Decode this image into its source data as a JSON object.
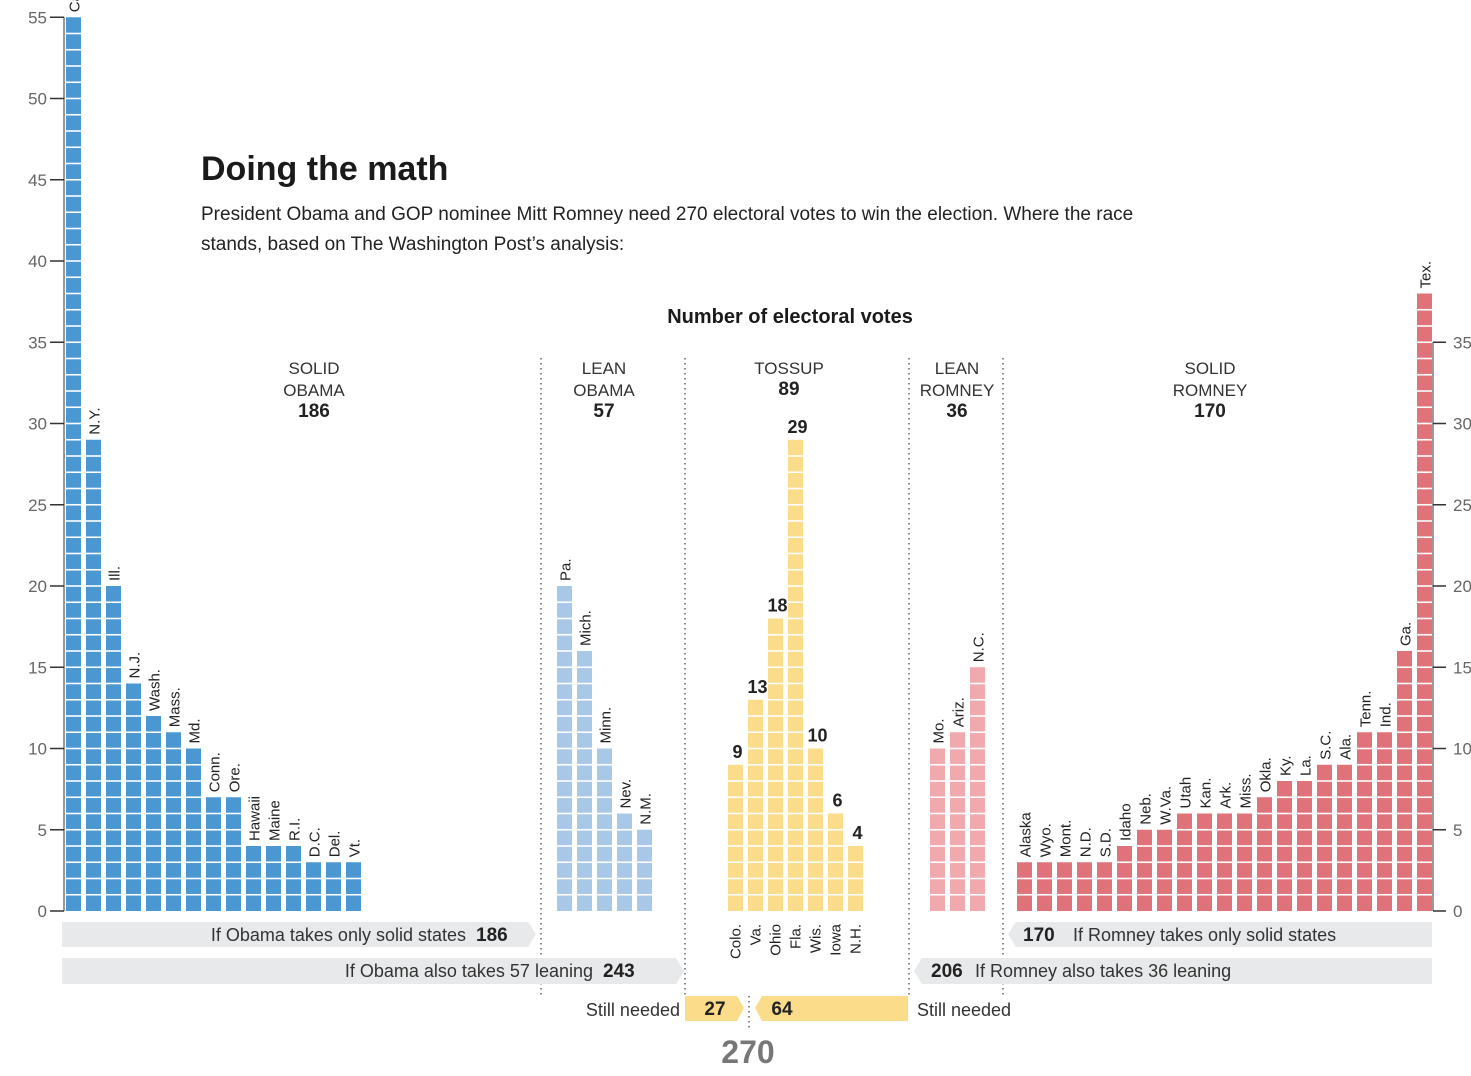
{
  "chart_data": {
    "type": "bar",
    "title": "Doing the math",
    "subtitle": "President Obama and GOP nominee Mitt Romney need 270 electoral votes to win the election. Where the race stands, based on The Washington Post’s analysis:",
    "ylabel": "Number of electoral votes",
    "ylim": [
      0,
      55
    ],
    "yticks_left": [
      0,
      5,
      10,
      15,
      20,
      25,
      30,
      35,
      40,
      45,
      50,
      55
    ],
    "yticks_right": [
      0,
      5,
      10,
      15,
      20,
      25,
      30,
      35
    ],
    "grid": false,
    "groups": [
      {
        "name": "SOLID OBAMA",
        "label_lines": [
          "SOLID",
          "OBAMA"
        ],
        "total": "186",
        "color": "#4a97d2",
        "states": [
          {
            "name": "Calif.",
            "votes": 55
          },
          {
            "name": "N.Y.",
            "votes": 29
          },
          {
            "name": "Ill.",
            "votes": 20
          },
          {
            "name": "N.J.",
            "votes": 14
          },
          {
            "name": "Wash.",
            "votes": 12
          },
          {
            "name": "Mass.",
            "votes": 11
          },
          {
            "name": "Md.",
            "votes": 10
          },
          {
            "name": "Conn.",
            "votes": 7
          },
          {
            "name": "Ore.",
            "votes": 7
          },
          {
            "name": "Hawaii",
            "votes": 4
          },
          {
            "name": "Maine",
            "votes": 4
          },
          {
            "name": "R.I.",
            "votes": 4
          },
          {
            "name": "D.C.",
            "votes": 3
          },
          {
            "name": "Del.",
            "votes": 3
          },
          {
            "name": "Vt.",
            "votes": 3
          }
        ]
      },
      {
        "name": "LEAN OBAMA",
        "label_lines": [
          "LEAN",
          "OBAMA"
        ],
        "total": "57",
        "color": "#a8c8e8",
        "states": [
          {
            "name": "Pa.",
            "votes": 20
          },
          {
            "name": "Mich.",
            "votes": 16
          },
          {
            "name": "Minn.",
            "votes": 10
          },
          {
            "name": "Nev.",
            "votes": 6
          },
          {
            "name": "N.M.",
            "votes": 5
          }
        ]
      },
      {
        "name": "TOSSUP",
        "label_lines": [
          "TOSSUP"
        ],
        "total": "89",
        "color": "#fadc8a",
        "states": [
          {
            "name": "Colo.",
            "votes": 9
          },
          {
            "name": "Va.",
            "votes": 13
          },
          {
            "name": "Ohio",
            "votes": 18
          },
          {
            "name": "Fla.",
            "votes": 29
          },
          {
            "name": "Wis.",
            "votes": 10
          },
          {
            "name": "Iowa",
            "votes": 6
          },
          {
            "name": "N.H.",
            "votes": 4
          }
        ]
      },
      {
        "name": "LEAN ROMNEY",
        "label_lines": [
          "LEAN",
          "ROMNEY"
        ],
        "total": "36",
        "color": "#f0a9ac",
        "states": [
          {
            "name": "Mo.",
            "votes": 10
          },
          {
            "name": "Ariz.",
            "votes": 11
          },
          {
            "name": "N.C.",
            "votes": 15
          }
        ]
      },
      {
        "name": "SOLID ROMNEY",
        "label_lines": [
          "SOLID",
          "ROMNEY"
        ],
        "total": "170",
        "color": "#e0737a",
        "states": [
          {
            "name": "Alaska",
            "votes": 3
          },
          {
            "name": "Wyo.",
            "votes": 3
          },
          {
            "name": "Mont.",
            "votes": 3
          },
          {
            "name": "N.D.",
            "votes": 3
          },
          {
            "name": "S.D.",
            "votes": 3
          },
          {
            "name": "Idaho",
            "votes": 4
          },
          {
            "name": "Neb.",
            "votes": 5
          },
          {
            "name": "W.Va.",
            "votes": 5
          },
          {
            "name": "Utah",
            "votes": 6
          },
          {
            "name": "Kan.",
            "votes": 6
          },
          {
            "name": "Ark.",
            "votes": 6
          },
          {
            "name": "Miss.",
            "votes": 6
          },
          {
            "name": "Okla.",
            "votes": 7
          },
          {
            "name": "Ky.",
            "votes": 8
          },
          {
            "name": "La.",
            "votes": 8
          },
          {
            "name": "S.C.",
            "votes": 9
          },
          {
            "name": "Ala.",
            "votes": 9
          },
          {
            "name": "Tenn.",
            "votes": 11
          },
          {
            "name": "Ind.",
            "votes": 11
          },
          {
            "name": "Ga.",
            "votes": 16
          },
          {
            "name": "Tex.",
            "votes": 38
          }
        ]
      }
    ],
    "summary": {
      "obama_solid": {
        "text": "If Obama takes only solid states",
        "value": "186"
      },
      "obama_lean": {
        "text": "If Obama also takes 57 leaning",
        "value": "243"
      },
      "romney_solid": {
        "text": "If Romney takes only solid states",
        "value": "170"
      },
      "romney_lean": {
        "text": "If Romney also takes 36 leaning",
        "value": "206"
      },
      "still_needed_label": "Still needed",
      "obama_needed": "27",
      "romney_needed": "64",
      "target": "270"
    }
  }
}
